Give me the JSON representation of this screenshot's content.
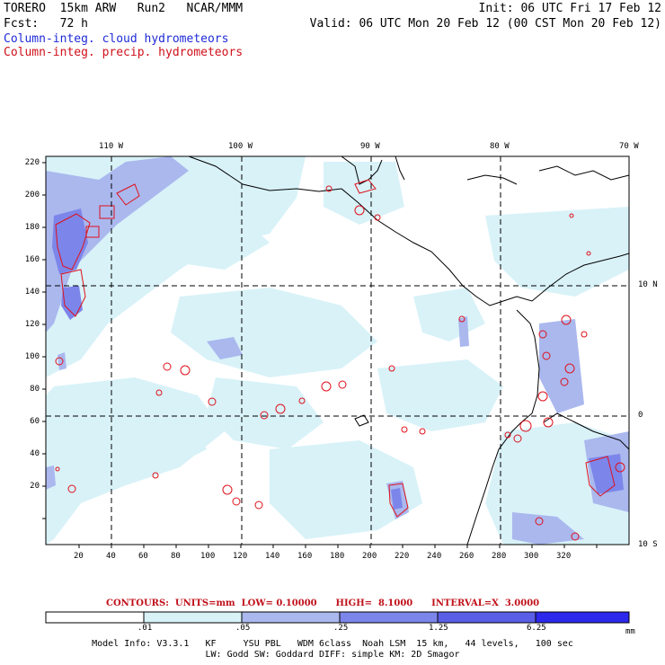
{
  "header": {
    "title_line": "TORERO  15km ARW   Run2   NCAR/MMM",
    "init": "Init: 06 UTC Fri 17 Feb 12",
    "fcst": "Fcst:   72 h",
    "valid": "Valid: 06 UTC Mon 20 Feb 12 (00 CST Mon 20 Feb 12)",
    "legend_cloud": "Column-integ. cloud hydrometeors",
    "legend_precip": "Column-integ. precip. hydrometeors"
  },
  "map": {
    "top_ticks": [
      "110 W",
      "100 W",
      "90 W",
      "80 W",
      "70 W"
    ],
    "right_ticks": [
      "10 N",
      "0",
      "10 S"
    ],
    "y_ticks": [
      "220",
      "200",
      "180",
      "160",
      "140",
      "120",
      "100",
      "80",
      "60",
      "40",
      "20"
    ],
    "x_ticks": [
      "20",
      "40",
      "60",
      "80",
      "100",
      "120",
      "140",
      "160",
      "180",
      "200",
      "220",
      "240",
      "260",
      "280",
      "300",
      "320"
    ]
  },
  "contours": {
    "text": "CONTOURS:  UNITS=mm  LOW= 0.10000      HIGH=  8.1000      INTERVAL=X  3.0000"
  },
  "colorbar": {
    "labels": [
      ".01",
      ".05",
      ".25",
      "1.25",
      "6.25"
    ],
    "unit": "mm",
    "colors": [
      "#ffffff",
      "#d8f2f8",
      "#aab8ee",
      "#7c86ea",
      "#5a5ee6",
      "#2c28ec"
    ]
  },
  "model_info": {
    "line1": "Model Info: V3.3.1   KF     YSU PBL   WDM 6class  Noah LSM  15 km,   44 levels,   100 sec",
    "line2": "LW: Godd SW: Goddard DIFF: simple KM: 2D Smagor"
  }
}
